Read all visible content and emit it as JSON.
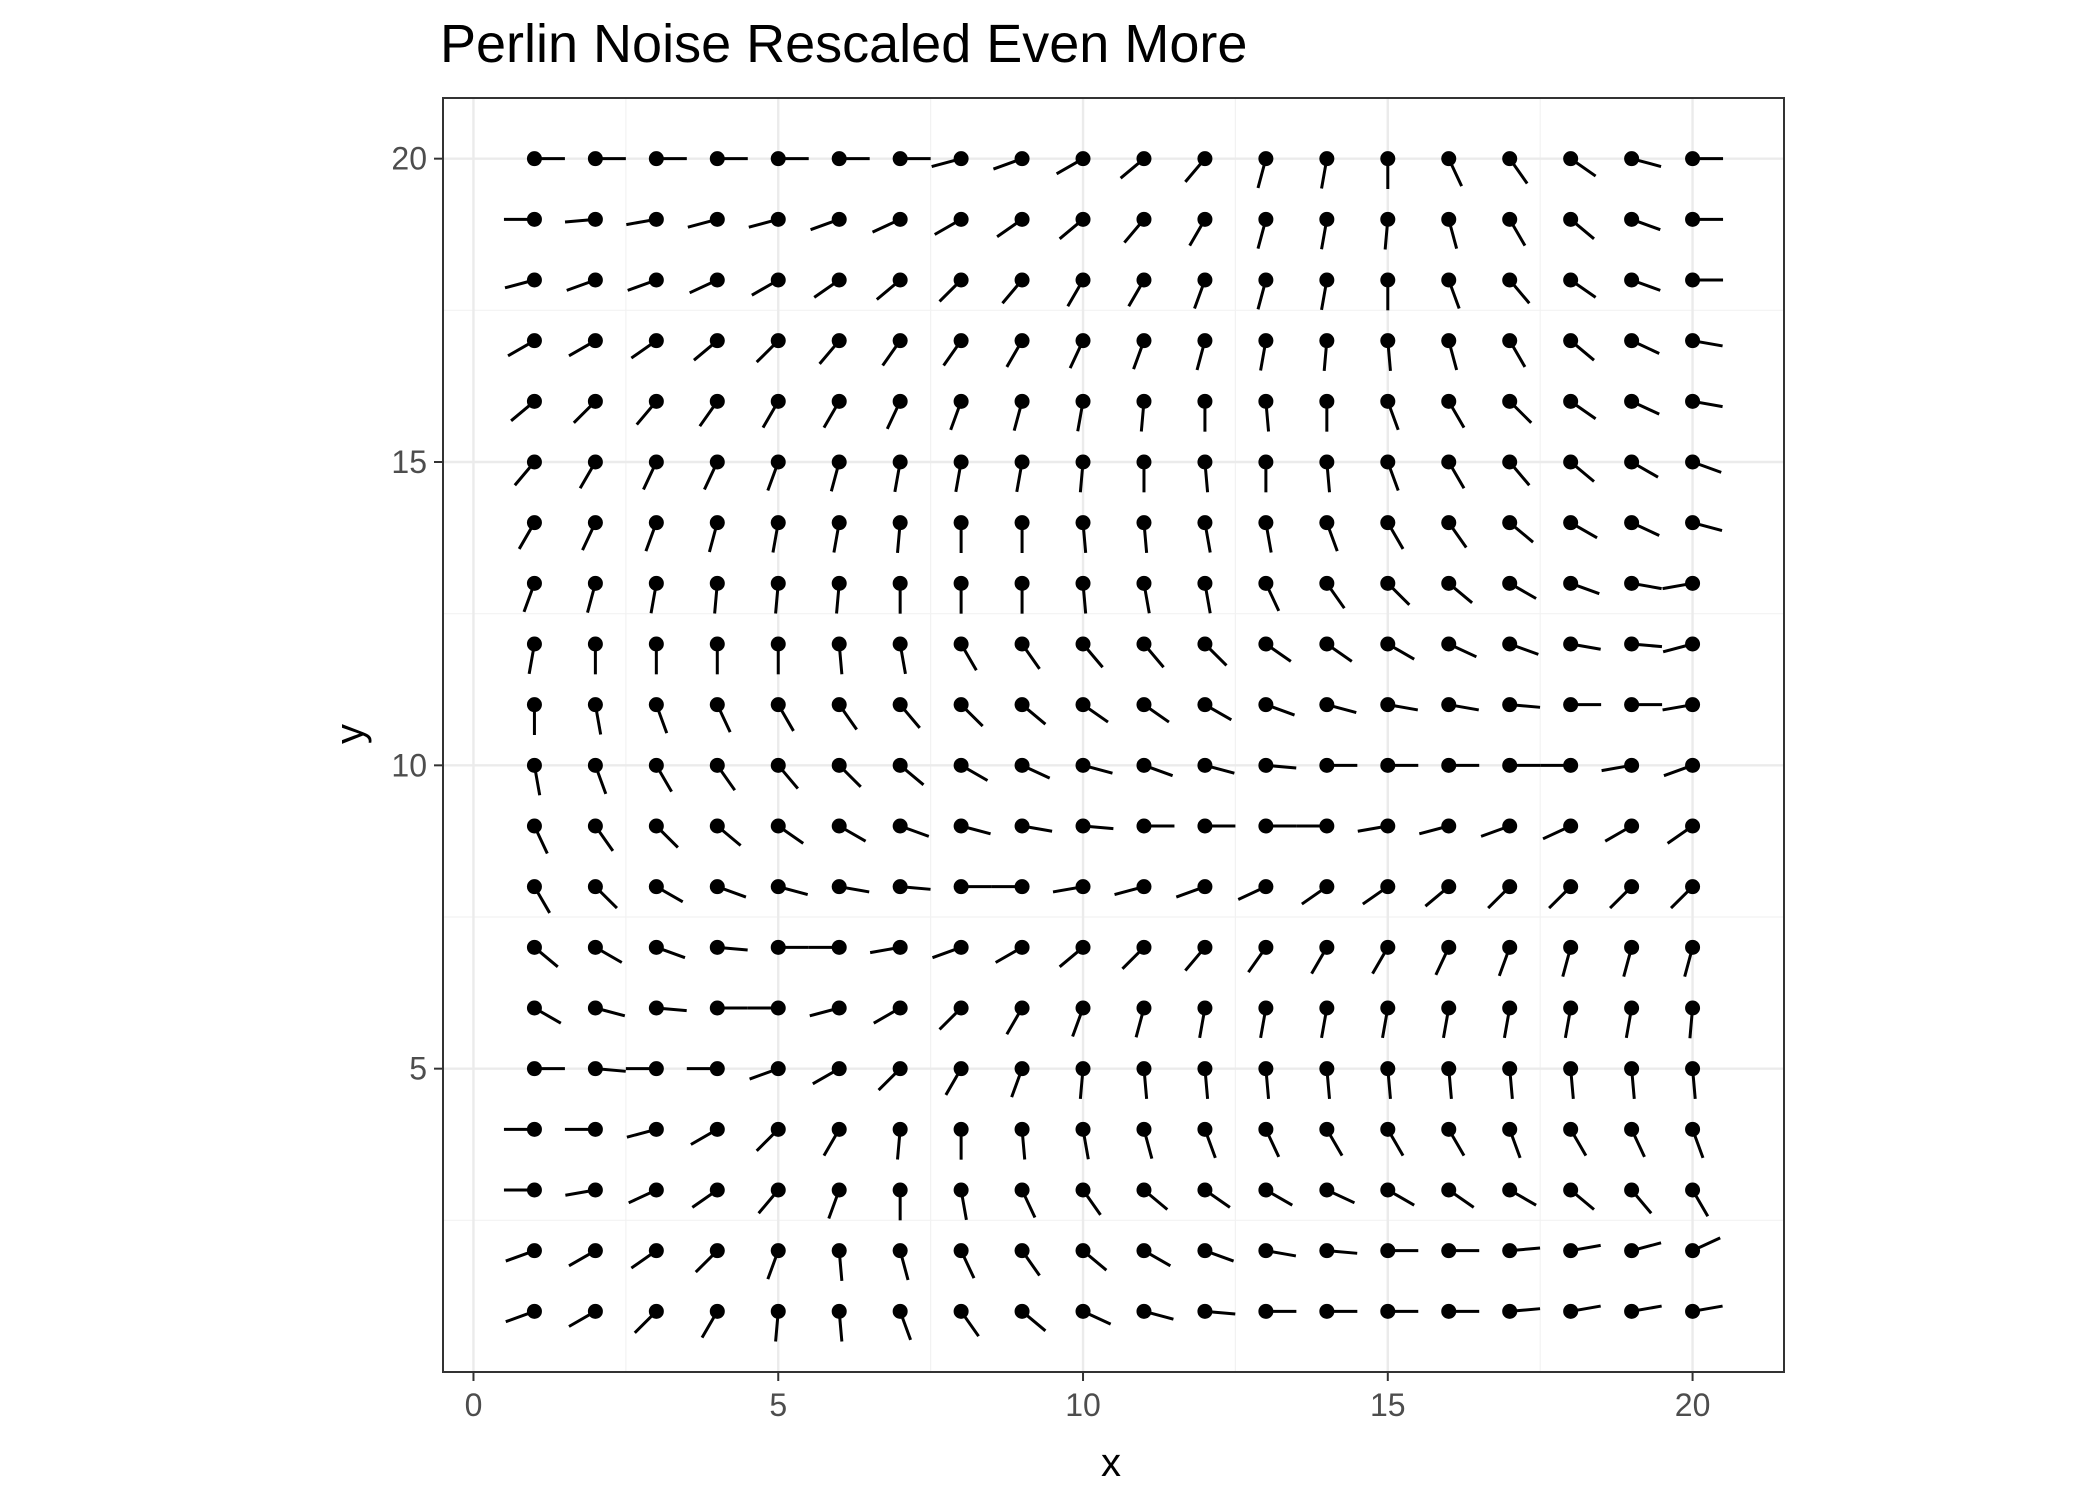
{
  "chart_data": {
    "type": "vector-field",
    "title": "Perlin Noise Rescaled Even More",
    "xlabel": "x",
    "ylabel": "y",
    "xlim": [
      -0.5,
      21.5
    ],
    "ylim": [
      0,
      21
    ],
    "x_ticks": [
      0,
      5,
      10,
      15,
      20
    ],
    "y_ticks": [
      5,
      10,
      15,
      20
    ],
    "x_tick_labels": [
      "0",
      "5",
      "10",
      "15",
      "20"
    ],
    "y_tick_labels": [
      "5",
      "10",
      "15",
      "20"
    ],
    "grid": true,
    "segment_length": 0.5,
    "points_x": [
      1,
      2,
      3,
      4,
      5,
      6,
      7,
      8,
      9,
      10,
      11,
      12,
      13,
      14,
      15,
      16,
      17,
      18,
      19,
      20
    ],
    "points_y": [
      1,
      2,
      3,
      4,
      5,
      6,
      7,
      8,
      9,
      10,
      11,
      12,
      13,
      14,
      15,
      16,
      17,
      18,
      19,
      20
    ],
    "angle_unit": "degrees, direction of tail from point, 0 = +x, counter-clockwise",
    "angles_by_row": {
      "1": [
        200,
        210,
        225,
        240,
        265,
        275,
        290,
        305,
        320,
        335,
        345,
        355,
        0,
        0,
        0,
        0,
        5,
        10,
        10,
        10
      ],
      "2": [
        200,
        210,
        215,
        225,
        250,
        275,
        285,
        295,
        305,
        320,
        330,
        340,
        350,
        355,
        0,
        0,
        5,
        10,
        15,
        25
      ],
      "3": [
        180,
        190,
        205,
        215,
        230,
        250,
        270,
        280,
        295,
        305,
        320,
        325,
        330,
        335,
        330,
        325,
        330,
        320,
        310,
        300
      ],
      "4": [
        180,
        180,
        195,
        210,
        225,
        240,
        265,
        270,
        275,
        280,
        285,
        290,
        295,
        300,
        300,
        300,
        290,
        300,
        295,
        290
      ],
      "5": [
        0,
        355,
        180,
        180,
        200,
        210,
        225,
        240,
        250,
        265,
        275,
        275,
        275,
        275,
        275,
        275,
        275,
        275,
        275,
        275
      ],
      "6": [
        330,
        345,
        355,
        0,
        180,
        195,
        210,
        225,
        240,
        250,
        255,
        260,
        260,
        260,
        260,
        260,
        260,
        260,
        260,
        265
      ],
      "7": [
        320,
        330,
        340,
        355,
        0,
        180,
        190,
        200,
        210,
        220,
        225,
        230,
        235,
        240,
        240,
        245,
        250,
        255,
        255,
        255
      ],
      "8": [
        300,
        315,
        330,
        340,
        345,
        350,
        355,
        0,
        180,
        190,
        195,
        200,
        205,
        215,
        215,
        220,
        225,
        225,
        225,
        225
      ],
      "9": [
        295,
        305,
        315,
        320,
        325,
        330,
        340,
        345,
        350,
        355,
        0,
        0,
        0,
        180,
        190,
        195,
        200,
        205,
        210,
        215
      ],
      "10": [
        280,
        290,
        300,
        305,
        310,
        315,
        320,
        330,
        335,
        345,
        340,
        345,
        355,
        0,
        0,
        0,
        0,
        180,
        190,
        200
      ],
      "11": [
        270,
        280,
        290,
        295,
        300,
        305,
        310,
        315,
        320,
        325,
        325,
        330,
        340,
        345,
        350,
        350,
        355,
        0,
        0,
        190
      ],
      "12": [
        260,
        270,
        270,
        270,
        270,
        275,
        280,
        300,
        305,
        310,
        310,
        315,
        325,
        325,
        330,
        335,
        340,
        350,
        355,
        195
      ],
      "13": [
        250,
        255,
        260,
        265,
        265,
        265,
        270,
        270,
        270,
        275,
        280,
        280,
        295,
        305,
        315,
        320,
        330,
        340,
        350,
        190
      ],
      "14": [
        240,
        245,
        250,
        255,
        260,
        260,
        265,
        270,
        270,
        275,
        275,
        280,
        280,
        290,
        300,
        305,
        320,
        330,
        335,
        345
      ],
      "15": [
        230,
        240,
        245,
        245,
        250,
        255,
        260,
        260,
        260,
        265,
        270,
        275,
        270,
        275,
        290,
        300,
        310,
        320,
        330,
        340
      ],
      "16": [
        220,
        225,
        230,
        235,
        240,
        240,
        245,
        250,
        255,
        260,
        265,
        270,
        275,
        270,
        290,
        300,
        315,
        325,
        335,
        350
      ],
      "17": [
        210,
        210,
        215,
        220,
        225,
        230,
        235,
        235,
        240,
        245,
        250,
        255,
        260,
        265,
        275,
        285,
        300,
        320,
        335,
        350
      ],
      "18": [
        195,
        200,
        200,
        205,
        210,
        215,
        220,
        225,
        230,
        240,
        240,
        250,
        255,
        260,
        270,
        290,
        310,
        325,
        340,
        0
      ],
      "19": [
        180,
        185,
        190,
        195,
        195,
        200,
        205,
        210,
        215,
        220,
        230,
        240,
        255,
        260,
        265,
        285,
        300,
        320,
        340,
        0
      ],
      "20": [
        0,
        0,
        0,
        0,
        0,
        0,
        0,
        195,
        200,
        210,
        220,
        230,
        255,
        260,
        270,
        295,
        305,
        325,
        345,
        0
      ]
    }
  }
}
